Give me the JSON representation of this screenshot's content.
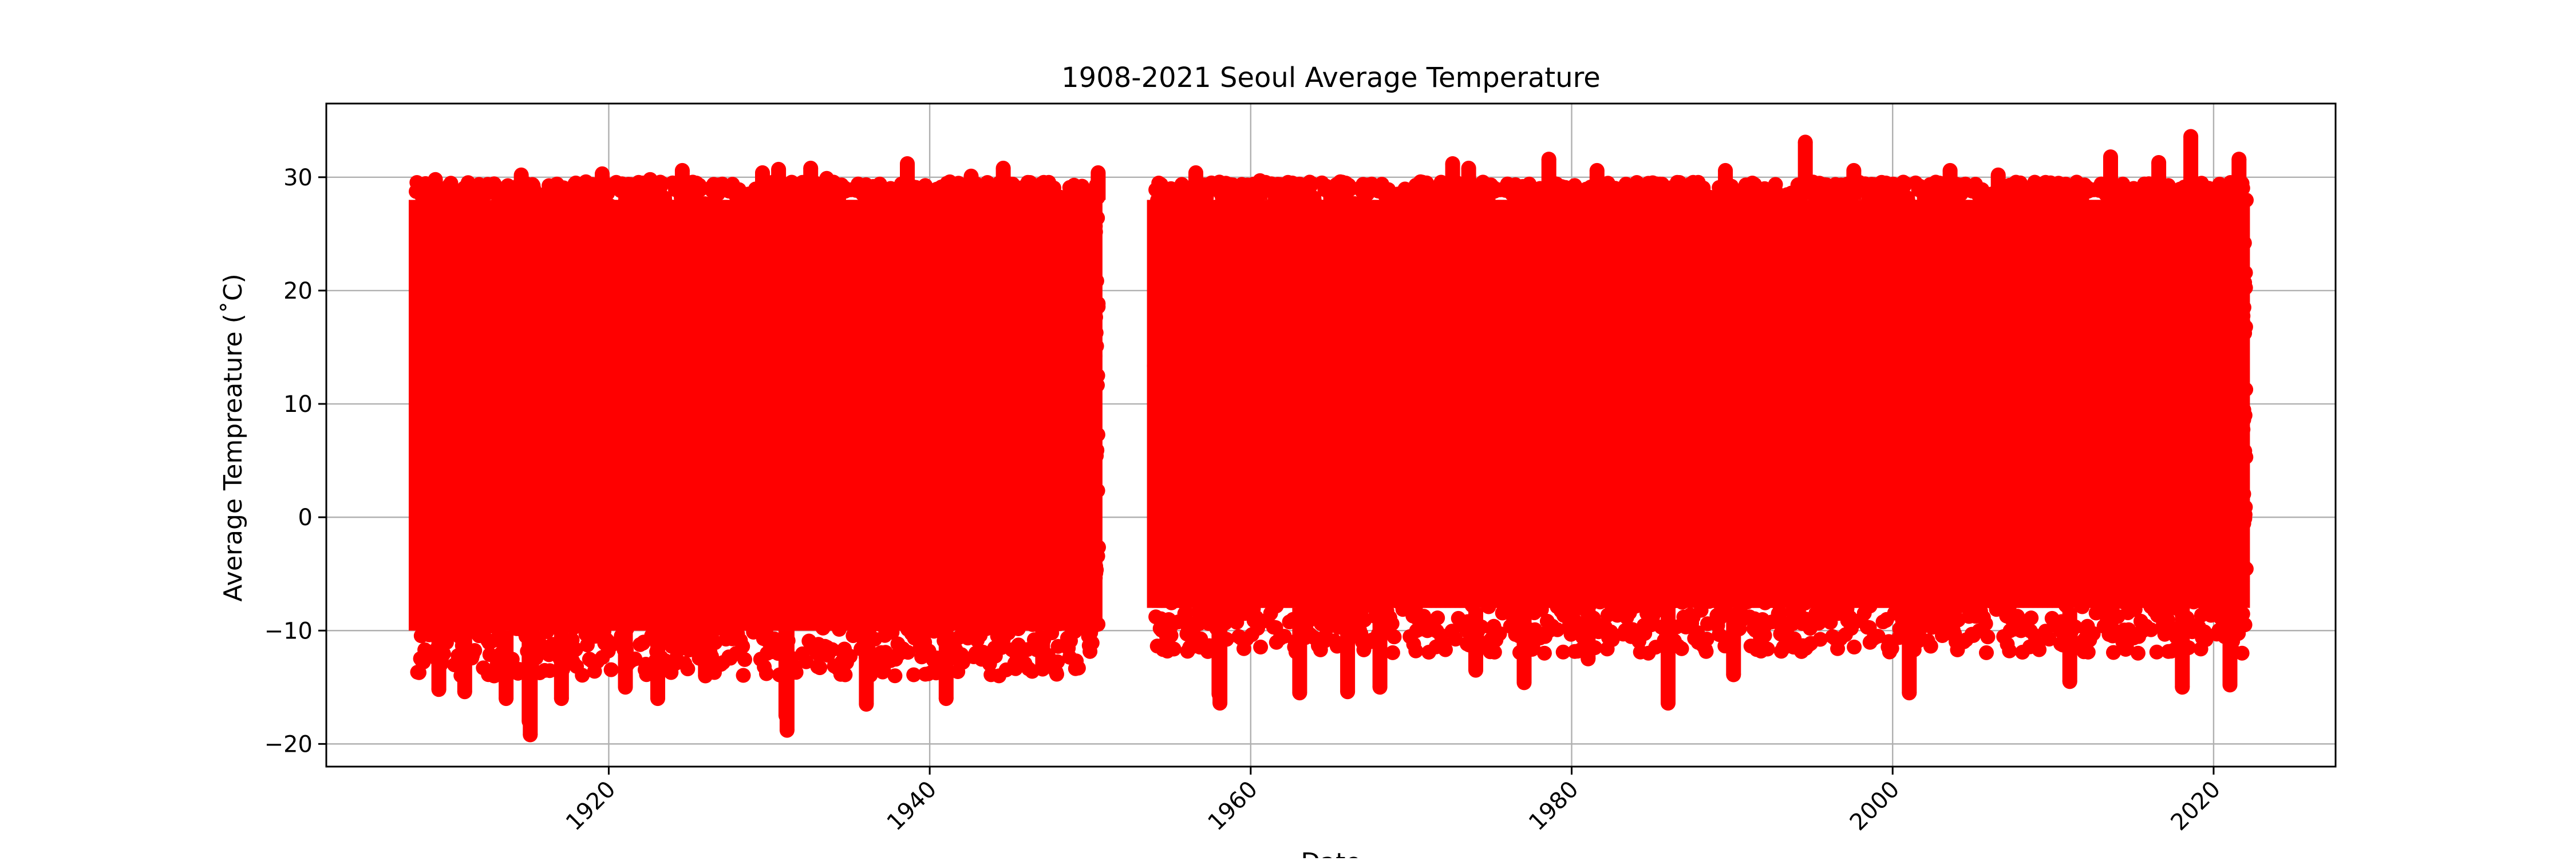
{
  "chart_data": {
    "type": "scatter",
    "title": "1908-2021 Seoul Average Temperature",
    "xlabel": "Date",
    "ylabel": "Average Tempreature (˚C)",
    "xlim": [
      1902.4,
      2027.6
    ],
    "ylim": [
      -22,
      36.5
    ],
    "x_ticks": [
      1920,
      1940,
      1960,
      1980,
      2000,
      2020
    ],
    "x_tick_labels": [
      "1920",
      "1940",
      "1960",
      "1980",
      "2000",
      "2020"
    ],
    "y_ticks": [
      -20,
      -10,
      0,
      10,
      20,
      30
    ],
    "y_tick_labels": [
      "−20",
      "−10",
      "0",
      "10",
      "20",
      "30"
    ],
    "x_tick_rotation": 45,
    "grid": true,
    "legend": "none",
    "marker_color": "#ff0000",
    "series": [
      {
        "x_start": "1908-01-01",
        "x_end": "1950-06-30",
        "band_low": -10,
        "band_high": 28,
        "extremes": [
          [
            "1909-03-15",
            29.8
          ],
          [
            "1909-06-01",
            -15.2
          ],
          [
            "1911-01-10",
            -15.4
          ],
          [
            "1912-02-05",
            28.6
          ],
          [
            "1913-08-10",
            -16.0
          ],
          [
            "1914-07-20",
            30.2
          ],
          [
            "1915-01-15",
            -18.0
          ],
          [
            "1915-02-10",
            -19.2
          ],
          [
            "1917-01-20",
            -16.0
          ],
          [
            "1918-08-01",
            29.6
          ],
          [
            "1919-08-05",
            30.3
          ],
          [
            "1921-01-15",
            -15.0
          ],
          [
            "1922-08-01",
            29.8
          ],
          [
            "1923-01-20",
            -16.0
          ],
          [
            "1924-08-01",
            30.6
          ],
          [
            "1926-01-10",
            -14.0
          ],
          [
            "1929-08-01",
            30.4
          ],
          [
            "1930-08-01",
            30.7
          ],
          [
            "1931-01-15",
            -17.5
          ],
          [
            "1931-02-10",
            -18.8
          ],
          [
            "1932-08-01",
            30.8
          ],
          [
            "1933-08-01",
            29.9
          ],
          [
            "1936-01-20",
            -16.5
          ],
          [
            "1938-08-10",
            31.2
          ],
          [
            "1941-01-10",
            -16.0
          ],
          [
            "1942-08-01",
            30.1
          ],
          [
            "1944-08-01",
            30.8
          ],
          [
            "1947-01-15",
            -13.4
          ],
          [
            "1950-01-10",
            -10.2
          ],
          [
            "1950-07-01",
            30.4
          ]
        ]
      },
      {
        "x_start": "1954-01-01",
        "x_end": "2021-12-31",
        "band_low": -8,
        "band_high": 28,
        "extremes": [
          [
            "1955-08-01",
            28.5
          ],
          [
            "1956-08-01",
            30.4
          ],
          [
            "1958-01-10",
            -15.6
          ],
          [
            "1958-02-01",
            -16.4
          ],
          [
            "1960-08-01",
            29.7
          ],
          [
            "1963-01-20",
            -15.5
          ],
          [
            "1965-08-01",
            29.6
          ],
          [
            "1966-01-15",
            -15.4
          ],
          [
            "1968-01-20",
            -15.0
          ],
          [
            "1970-08-01",
            29.6
          ],
          [
            "1972-08-01",
            31.2
          ],
          [
            "1973-08-01",
            30.8
          ],
          [
            "1974-01-10",
            -13.5
          ],
          [
            "1977-01-15",
            -14.6
          ],
          [
            "1978-08-01",
            31.6
          ],
          [
            "1981-01-10",
            -12.5
          ],
          [
            "1981-08-01",
            30.6
          ],
          [
            "1986-01-05",
            -16.4
          ],
          [
            "1989-08-01",
            30.6
          ],
          [
            "1990-02-01",
            -13.9
          ],
          [
            "1994-07-24",
            33.1
          ],
          [
            "1997-08-01",
            30.6
          ],
          [
            "2001-01-15",
            -15.5
          ],
          [
            "2003-08-01",
            30.6
          ],
          [
            "2006-08-01",
            30.2
          ],
          [
            "2011-01-15",
            -14.5
          ],
          [
            "2013-08-01",
            31.8
          ],
          [
            "2016-08-01",
            31.3
          ],
          [
            "2018-08-01",
            33.6
          ],
          [
            "2018-01-20",
            -15.0
          ],
          [
            "2021-01-08",
            -14.8
          ],
          [
            "2021-08-01",
            31.6
          ]
        ]
      }
    ]
  }
}
